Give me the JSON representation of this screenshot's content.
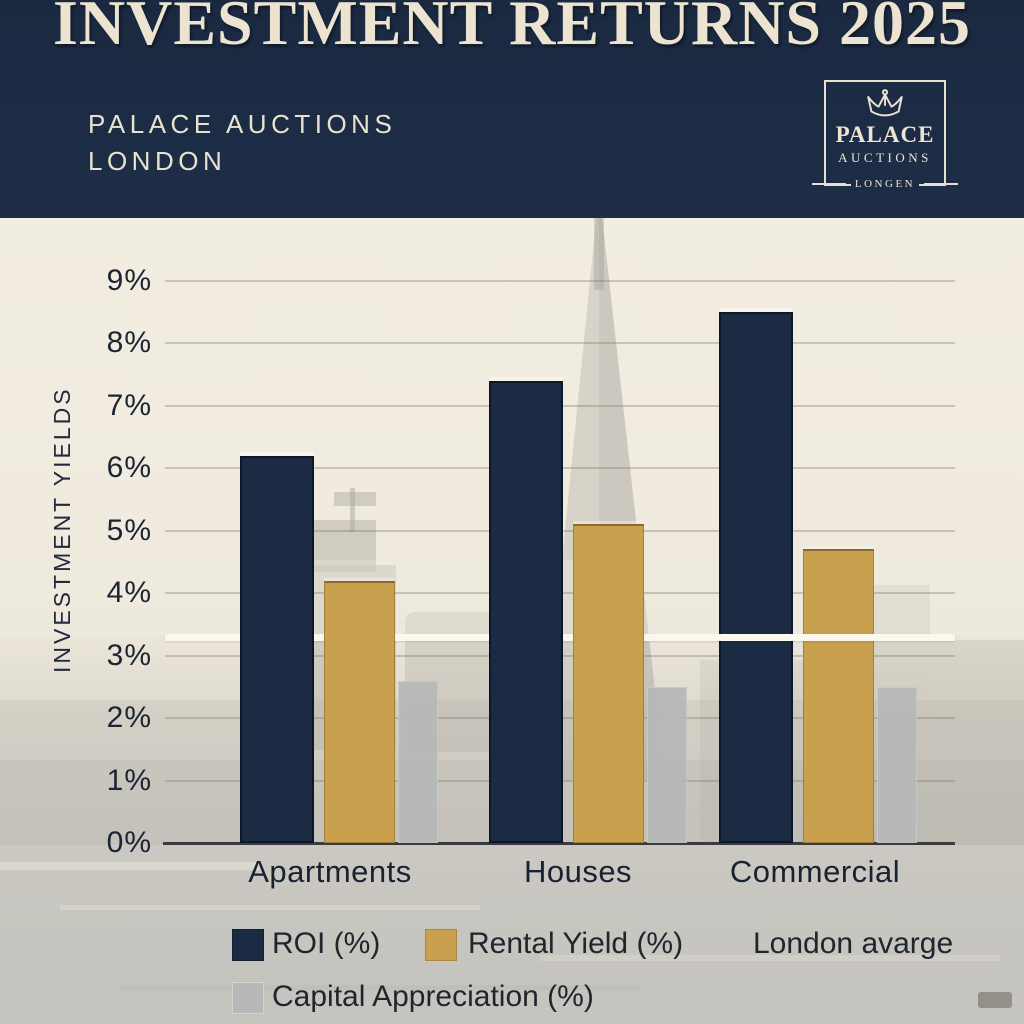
{
  "header": {
    "title": "INVESTMENT RETURNS 2025",
    "subtitle_line1": "PALACE AUCTIONS",
    "subtitle_line2": "LONDON"
  },
  "logo": {
    "name": "PALACE",
    "sub": "AUCTIONS",
    "tagline": "LONGEN",
    "icon": "crown-icon"
  },
  "chart_data": {
    "type": "bar",
    "title": "INVESTMENT RETURNS 2025",
    "y_axis_title": "INVESTMENT YIELDS",
    "categories": [
      "Apartments",
      "Houses",
      "Commercial"
    ],
    "series": [
      {
        "name": "ROI (%)",
        "color": "#1b2b44",
        "values": [
          6.2,
          7.4,
          8.5
        ]
      },
      {
        "name": "Rental Yield (%)",
        "color": "#c9a04e",
        "values": [
          4.2,
          5.1,
          4.7
        ]
      },
      {
        "name": "Capital Appreciation (%)",
        "color": "#b6b9b7",
        "values": [
          2.6,
          2.5,
          2.5
        ]
      }
    ],
    "y_ticks": [
      "0%",
      "1%",
      "2%",
      "3%",
      "4%",
      "5%",
      "6%",
      "7%",
      "8%",
      "9%"
    ],
    "ylim": [
      0,
      9
    ],
    "grid": true,
    "legend_position": "bottom",
    "average_line": {
      "label": "London avarge",
      "value": 3.3,
      "color": "#fbf8ee"
    }
  },
  "colors": {
    "header_bg": "#1d2c45",
    "chart_bg": "#f1ece0",
    "cream_text": "#ece4d1",
    "dark_text": "#1c2433",
    "avg_line": "#fbf8ee"
  }
}
